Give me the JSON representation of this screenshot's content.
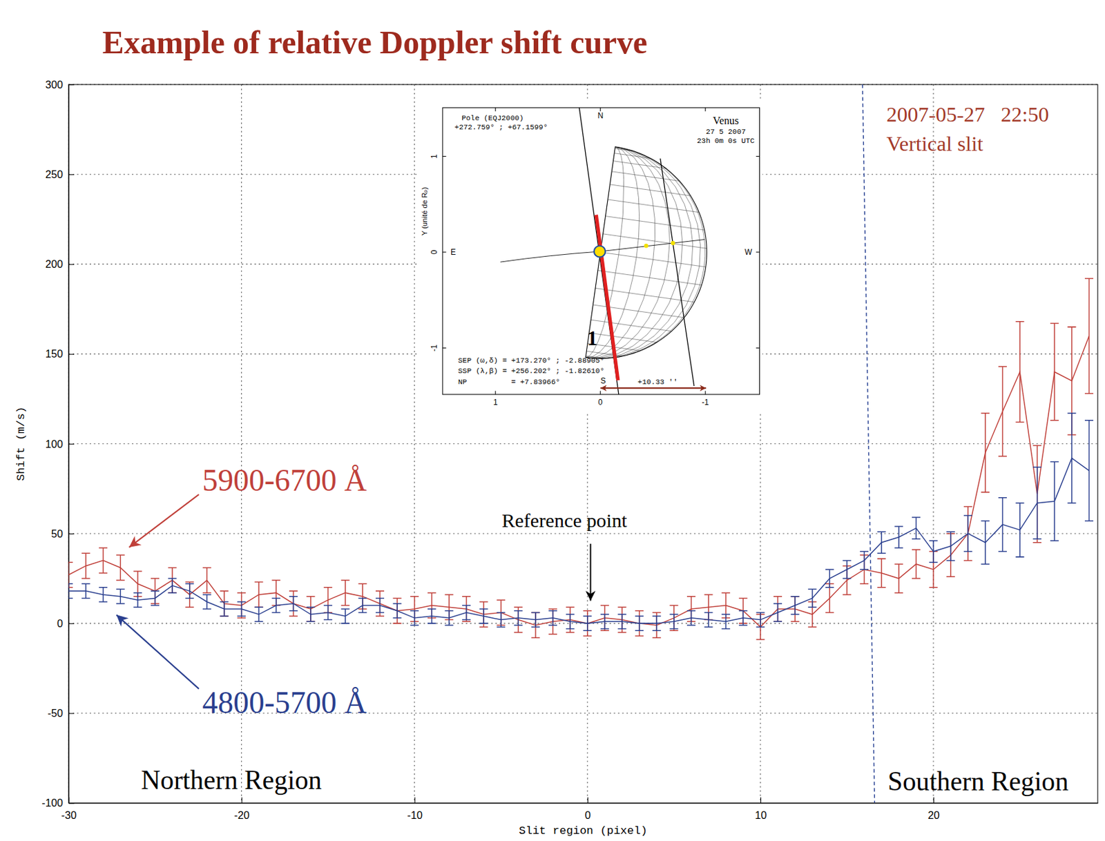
{
  "chart_data": {
    "type": "line",
    "title": "Example of relative Doppler shift curve",
    "x_label": "Slit region (pixel)",
    "y_label": "Shift (m/s)",
    "xlim": [
      -30,
      29.5
    ],
    "xticks": [
      -30,
      -20,
      -10,
      0,
      10,
      20
    ],
    "ylim": [
      -100,
      300
    ],
    "yticks": [
      -100,
      -50,
      0,
      50,
      100,
      150,
      200,
      250,
      300
    ],
    "grid": true,
    "x": [
      -30,
      -29,
      -28,
      -27,
      -26,
      -25,
      -24,
      -23,
      -22,
      -21,
      -20,
      -19,
      -18,
      -17,
      -16,
      -15,
      -14,
      -13,
      -12,
      -11,
      -10,
      -9,
      -8,
      -7,
      -6,
      -5,
      -4,
      -3,
      -2,
      -1,
      0,
      1,
      2,
      3,
      4,
      5,
      6,
      7,
      8,
      9,
      10,
      11,
      12,
      13,
      14,
      15,
      16,
      17,
      18,
      19,
      20,
      21,
      22,
      23,
      24,
      25,
      26,
      27,
      28,
      29
    ],
    "series": [
      {
        "name": "5900-6700 Å",
        "color": "#c0403a",
        "values": [
          27,
          32,
          35,
          31,
          22,
          18,
          24,
          16,
          24,
          11,
          10,
          16,
          17,
          11,
          8,
          13,
          17,
          15,
          11,
          7,
          8,
          10,
          9,
          8,
          5,
          6,
          2,
          -1,
          1,
          2,
          0,
          3,
          2,
          0,
          -1,
          3,
          8,
          9,
          10,
          7,
          -2,
          8,
          8,
          5,
          14,
          24,
          30,
          28,
          25,
          33,
          30,
          38,
          50,
          95,
          118,
          140,
          72,
          140,
          135,
          160
        ],
        "errors": [
          7,
          7,
          7,
          7,
          7,
          7,
          7,
          7,
          7,
          7,
          7,
          7,
          7,
          7,
          7,
          7,
          7,
          7,
          7,
          7,
          7,
          7,
          7,
          7,
          7,
          7,
          7,
          7,
          7,
          7,
          7,
          7,
          7,
          7,
          7,
          7,
          7,
          7,
          7,
          7,
          7,
          7,
          7,
          7,
          8,
          8,
          8,
          8,
          8,
          8,
          10,
          12,
          15,
          22,
          25,
          28,
          27,
          27,
          30,
          32
        ]
      },
      {
        "name": "4800-5700 Å",
        "color": "#2a3f8f",
        "values": [
          18,
          18,
          16,
          15,
          13,
          14,
          21,
          18,
          12,
          8,
          8,
          5,
          10,
          11,
          5,
          6,
          4,
          10,
          10,
          7,
          3,
          4,
          3,
          6,
          4,
          2,
          3,
          2,
          3,
          1,
          0,
          1,
          1,
          0,
          0,
          1,
          3,
          2,
          1,
          3,
          2,
          6,
          10,
          14,
          25,
          30,
          35,
          45,
          48,
          53,
          40,
          43,
          50,
          45,
          55,
          52,
          67,
          68,
          92,
          85
        ],
        "errors": [
          4,
          4,
          4,
          4,
          4,
          4,
          4,
          4,
          4,
          4,
          4,
          4,
          4,
          4,
          4,
          4,
          4,
          4,
          4,
          4,
          4,
          4,
          4,
          4,
          4,
          4,
          4,
          4,
          4,
          4,
          4,
          4,
          4,
          4,
          4,
          4,
          4,
          4,
          4,
          4,
          4,
          5,
          5,
          5,
          5,
          5,
          5,
          6,
          6,
          6,
          6,
          8,
          10,
          12,
          15,
          15,
          20,
          22,
          25,
          28
        ]
      }
    ],
    "divider": {
      "x": [
        15.9,
        16.6
      ],
      "y": [
        300,
        -100
      ]
    },
    "annotations": {
      "date": "2007-05-27   22:50",
      "slit": "Vertical slit",
      "reference": "Reference point",
      "north_region": "Northern Region",
      "south_region": "Southern Region"
    },
    "inset": {
      "pole_label": "Pole (EQJ2000)",
      "pole_coords": "+272.759° ; +67.1599°",
      "planet": "Venus",
      "date": "27 5 2007",
      "time": "23h 0m 0s UTC",
      "north": "N",
      "south": "S",
      "east": "E",
      "west": "W",
      "y_label": "Y (unité de Rₚ)",
      "xticks": [
        1,
        0,
        -1
      ],
      "yticks": [
        1,
        0,
        -1
      ],
      "sep": "SEP (ω,δ) = +173.270° ; -2.88905°",
      "ssp": "SSP (λ,β) = +256.202° ; -1.82610°",
      "np": "NP          = +7.83966°",
      "scale_text": "+10.33 ''",
      "slit_label": "1"
    }
  }
}
